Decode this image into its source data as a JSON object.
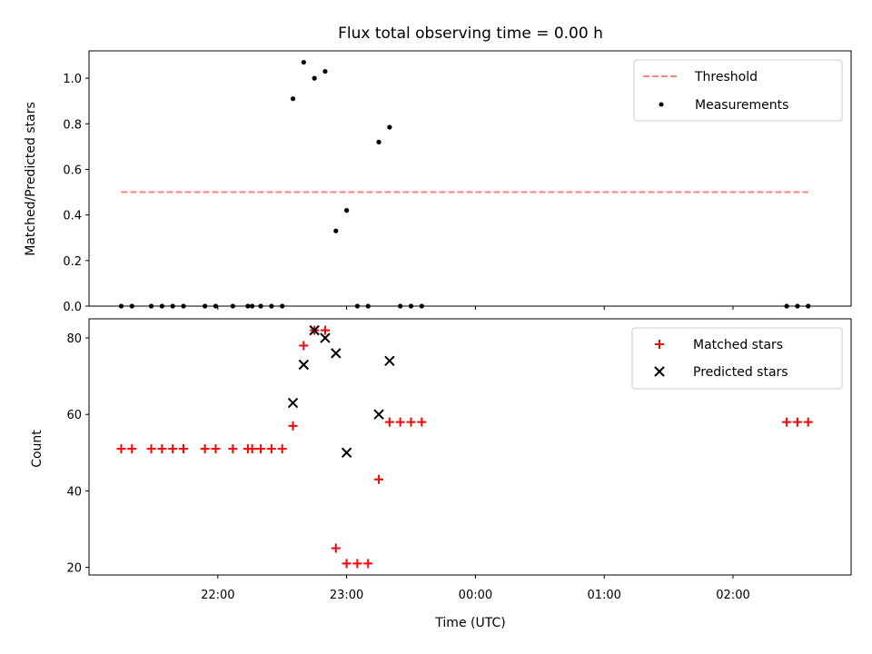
{
  "chart_data": [
    {
      "type": "scatter",
      "title": "Flux total observing time = 0.00 h",
      "xlabel": "",
      "ylabel": "Matched/Predicted stars",
      "x_range": [
        "21:00",
        "02:55"
      ],
      "ylim": [
        0,
        1.12
      ],
      "y_ticks": [
        "0.0",
        "0.2",
        "0.4",
        "0.6",
        "0.8",
        "1.0"
      ],
      "legend_position": "top-right",
      "legend": {
        "threshold": "Threshold",
        "measurements": "Measurements"
      },
      "threshold": {
        "value": 0.5,
        "x_start": "21:15",
        "x_end": "02:35",
        "color": "#ff8080"
      },
      "measurements": {
        "color": "#000000",
        "x": [
          "21:15",
          "21:20",
          "21:29",
          "21:34",
          "21:39",
          "21:44",
          "21:54",
          "21:59",
          "22:07",
          "22:14",
          "22:16",
          "22:20",
          "22:25",
          "22:30",
          "22:35",
          "22:40",
          "22:45",
          "22:50",
          "22:55",
          "23:00",
          "23:05",
          "23:10",
          "23:15",
          "23:20",
          "23:25",
          "23:30",
          "23:35",
          "02:25",
          "02:30",
          "02:35"
        ],
        "y": [
          0,
          0,
          0,
          0,
          0,
          0,
          0,
          0,
          0,
          0,
          0,
          0,
          0,
          0,
          0.91,
          1.07,
          1.0,
          1.03,
          0.33,
          0.42,
          0,
          0,
          0.72,
          0.785,
          0,
          0,
          0,
          0,
          0,
          0
        ]
      }
    },
    {
      "type": "scatter",
      "title": "",
      "xlabel": "Time (UTC)",
      "ylabel": "Count",
      "x_ticks": [
        "22:00",
        "23:00",
        "00:00",
        "01:00",
        "02:00"
      ],
      "ylim": [
        18,
        85
      ],
      "y_ticks": [
        "20",
        "40",
        "60",
        "80"
      ],
      "legend_position": "top-right",
      "series": [
        {
          "name": "Matched stars",
          "marker": "plus",
          "color": "#ff0000",
          "x": [
            "21:15",
            "21:20",
            "21:29",
            "21:34",
            "21:39",
            "21:44",
            "21:54",
            "21:59",
            "22:07",
            "22:14",
            "22:16",
            "22:20",
            "22:25",
            "22:30",
            "22:35",
            "22:40",
            "22:45",
            "22:50",
            "22:55",
            "23:00",
            "23:05",
            "23:10",
            "23:15",
            "23:20",
            "23:25",
            "23:30",
            "23:35",
            "02:25",
            "02:30",
            "02:35"
          ],
          "y": [
            51,
            51,
            51,
            51,
            51,
            51,
            51,
            51,
            51,
            51,
            51,
            51,
            51,
            51,
            57,
            78,
            82,
            82,
            25,
            21,
            21,
            21,
            43,
            58,
            58,
            58,
            58,
            58,
            58,
            58
          ]
        },
        {
          "name": "Predicted stars",
          "marker": "x",
          "color": "#000000",
          "x": [
            "22:35",
            "22:40",
            "22:45",
            "22:50",
            "22:55",
            "23:00",
            "23:15",
            "23:20"
          ],
          "y": [
            63,
            73,
            82,
            80,
            76,
            50,
            60,
            74
          ]
        }
      ]
    }
  ]
}
